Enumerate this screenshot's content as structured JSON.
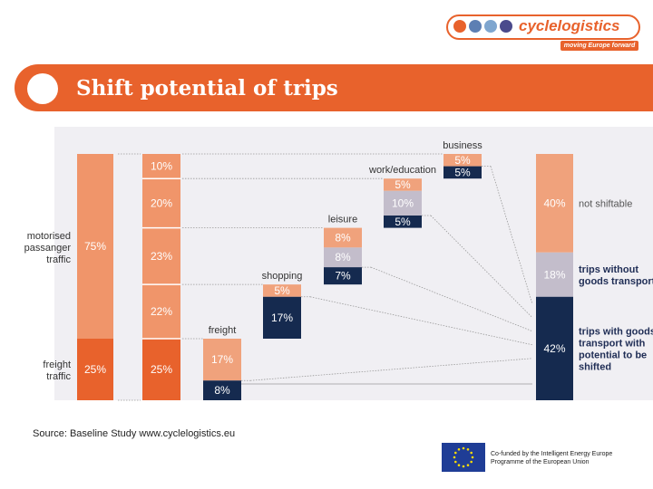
{
  "brand": {
    "logo_text": "cyclelogistics",
    "tagline": "moving Europe forward",
    "dot_colors": [
      "#e8622c",
      "#5d7fb3",
      "#7fa6cf",
      "#4a4a8c"
    ]
  },
  "slide": {
    "title": "Shift potential of trips"
  },
  "chart_data": {
    "type": "bar",
    "title": "",
    "colors": {
      "motorised": "#f0956a",
      "freight_total": "#e8622c",
      "light_orange": "#f0a27c",
      "grey": "#c3bdcb",
      "navy": "#152a4f",
      "background": "#f0eff3"
    },
    "total_bar": {
      "segments": [
        {
          "label": "motorised passanger traffic",
          "label_lines": [
            "motorised",
            "passanger",
            "traffic"
          ],
          "value": 75,
          "text": "75%"
        },
        {
          "label": "freight traffic",
          "label_lines": [
            "freight",
            "traffic"
          ],
          "value": 25,
          "text": "25%"
        }
      ]
    },
    "breakdown_bar": {
      "segments": [
        {
          "category": "business",
          "value": 10,
          "text": "10%"
        },
        {
          "category": "work/education",
          "value": 20,
          "text": "20%"
        },
        {
          "category": "leisure",
          "value": 23,
          "text": "23%"
        },
        {
          "category": "shopping",
          "value": 22,
          "text": "22%"
        },
        {
          "category": "freight",
          "value": 25,
          "text": "25%"
        }
      ]
    },
    "categories": [
      "freight",
      "shopping",
      "leisure",
      "work/education",
      "business"
    ],
    "series": [
      {
        "name": "not shiftable",
        "values": [
          17,
          5,
          8,
          5,
          5
        ],
        "labels": [
          "17%",
          "5%",
          "8%",
          "5%",
          "5%"
        ]
      },
      {
        "name": "trips without goods transport",
        "values": [
          0,
          0,
          8,
          10,
          0
        ],
        "labels": [
          "",
          "",
          "8%",
          "10%",
          ""
        ]
      },
      {
        "name": "trips with goods transport with potential to be shifted",
        "values": [
          8,
          17,
          7,
          5,
          5
        ],
        "labels": [
          "8%",
          "17%",
          "7%",
          "5%",
          "5%"
        ]
      }
    ],
    "result_bar": {
      "segments": [
        {
          "name": "not shiftable",
          "label_lines": [
            "not shiftable"
          ],
          "value": 40,
          "text": "40%"
        },
        {
          "name": "trips without goods transport",
          "label_lines": [
            "trips without",
            "goods transport"
          ],
          "value": 18,
          "text": "18%"
        },
        {
          "name": "trips with goods transport with potential to be shifted",
          "label_lines": [
            "trips with goods",
            "transport with",
            "potential to be",
            "shifted"
          ],
          "value": 42,
          "text": "42%"
        }
      ]
    }
  },
  "source": "Source: Baseline Study  www.cyclelogistics.eu",
  "funding": {
    "line1": "Co-funded by the Intelligent Energy Europe",
    "line2": "Programme of the European Union"
  }
}
